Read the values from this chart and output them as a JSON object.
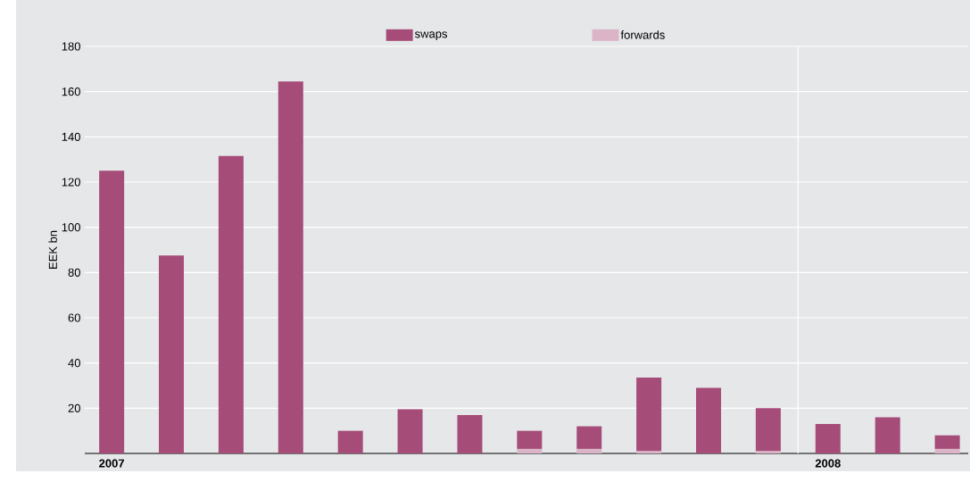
{
  "chart_data": {
    "type": "bar",
    "stacked": true,
    "ylabel": "EEK bn",
    "categories": [
      "2007",
      null,
      null,
      null,
      null,
      null,
      null,
      null,
      null,
      null,
      null,
      null,
      "2008",
      null,
      null
    ],
    "series": [
      {
        "name": "forwards",
        "color": "#dbb4c8",
        "values": [
          0,
          0,
          0,
          0,
          0,
          0,
          0,
          2,
          2,
          1,
          0,
          1,
          null,
          0,
          2
        ]
      },
      {
        "name": "swaps",
        "color": "#a54c78",
        "values": [
          125,
          87.5,
          131.5,
          164.5,
          10,
          19.5,
          17,
          8,
          10,
          32.5,
          29,
          19,
          13,
          16,
          6
        ]
      }
    ],
    "ylim": [
      0,
      180
    ],
    "yticks": [
      20,
      40,
      60,
      80,
      100,
      120,
      140,
      160,
      180
    ],
    "grid": "y",
    "legend": "top"
  }
}
